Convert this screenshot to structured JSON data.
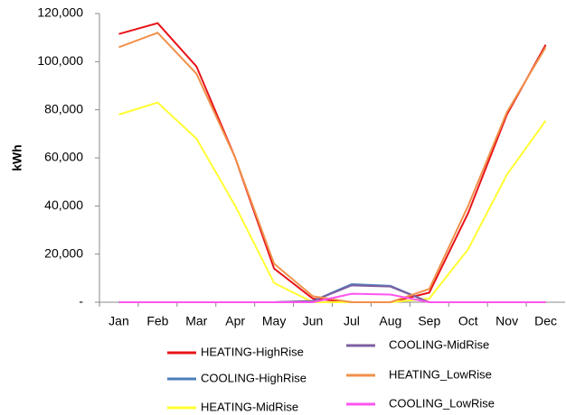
{
  "chart_data": {
    "type": "line",
    "y_label": "kWh",
    "categories": [
      "Jan",
      "Feb",
      "Mar",
      "Apr",
      "May",
      "Jun",
      "Jul",
      "Aug",
      "Sep",
      "Oct",
      "Nov",
      "Dec"
    ],
    "ylim": [
      0,
      120000
    ],
    "yticks": [
      {
        "value": 0,
        "label": "-"
      },
      {
        "value": 20000,
        "label": "20,000"
      },
      {
        "value": 40000,
        "label": "40,000"
      },
      {
        "value": 60000,
        "label": "60,000"
      },
      {
        "value": 80000,
        "label": "80,000"
      },
      {
        "value": 100000,
        "label": "100,000"
      },
      {
        "value": 120000,
        "label": "120,000"
      }
    ],
    "grid": false,
    "series": [
      {
        "name": "HEATING-HighRise",
        "color": "#e8141a",
        "values": [
          111500,
          116000,
          98000,
          60000,
          14000,
          1500,
          0,
          0,
          4000,
          37000,
          78000,
          107000
        ]
      },
      {
        "name": "COOLING-HighRise",
        "color": "#4a7ebb",
        "values": [
          0,
          0,
          0,
          0,
          0,
          500,
          7500,
          6800,
          0,
          0,
          0,
          0
        ]
      },
      {
        "name": "HEATING-MidRise",
        "color": "#ffff33",
        "values": [
          78000,
          83000,
          68000,
          40000,
          8000,
          0,
          0,
          0,
          1500,
          22000,
          53000,
          75500
        ]
      },
      {
        "name": "COOLING-MidRise",
        "color": "#7d5fa0",
        "values": [
          0,
          0,
          0,
          0,
          0,
          500,
          7000,
          6500,
          0,
          0,
          0,
          0
        ]
      },
      {
        "name": "HEATING_LowRise",
        "color": "#f0914a",
        "values": [
          106000,
          112000,
          95000,
          60000,
          16000,
          2500,
          0,
          0,
          5500,
          40000,
          79000,
          106000
        ]
      },
      {
        "name": "COOLING_LowRise",
        "color": "#ff55ee",
        "values": [
          0,
          0,
          0,
          0,
          0,
          0,
          3500,
          3200,
          0,
          0,
          0,
          0
        ]
      }
    ]
  }
}
